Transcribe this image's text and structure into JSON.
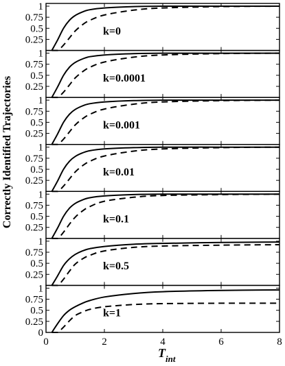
{
  "chart_data": {
    "type": "line",
    "ylabel": "Correctly Identified Trajectories",
    "xlabel_main": "T",
    "xlabel_sub": "int",
    "xlim": [
      0,
      8
    ],
    "ylim": [
      0,
      1
    ],
    "x_ticks": [
      "0",
      "2",
      "4",
      "6",
      "8"
    ],
    "y_ticks": [
      "0.25",
      "0.5",
      "0.75",
      "1"
    ],
    "y_ticks_bottom": [
      "0",
      "0.25",
      "0.5",
      "0.75",
      "1"
    ],
    "series_styles": {
      "solid": "#000000",
      "dashed": "#000000"
    },
    "panels": [
      {
        "label": "k=0",
        "x": [
          0.2,
          0.4,
          0.6,
          0.8,
          1.0,
          1.25,
          1.5,
          2,
          3,
          4,
          6,
          8
        ],
        "solid": [
          0,
          0.24,
          0.5,
          0.68,
          0.79,
          0.87,
          0.92,
          0.96,
          0.99,
          1,
          1,
          1
        ],
        "dashed": [
          0,
          0,
          0.12,
          0.28,
          0.44,
          0.58,
          0.68,
          0.8,
          0.91,
          0.96,
          0.99,
          1
        ]
      },
      {
        "label": "k=0.0001",
        "x": [
          0.2,
          0.4,
          0.6,
          0.8,
          1.0,
          1.25,
          1.5,
          2,
          3,
          4,
          6,
          8
        ],
        "solid": [
          0,
          0.24,
          0.5,
          0.68,
          0.79,
          0.87,
          0.92,
          0.96,
          0.99,
          1,
          1,
          1
        ],
        "dashed": [
          0,
          0,
          0.12,
          0.28,
          0.44,
          0.58,
          0.68,
          0.8,
          0.91,
          0.96,
          0.99,
          1
        ]
      },
      {
        "label": "k=0.001",
        "x": [
          0.2,
          0.4,
          0.6,
          0.8,
          1.0,
          1.25,
          1.5,
          2,
          3,
          4,
          6,
          8
        ],
        "solid": [
          0,
          0.24,
          0.5,
          0.68,
          0.79,
          0.87,
          0.92,
          0.96,
          0.99,
          1,
          1,
          1
        ],
        "dashed": [
          0,
          0,
          0.12,
          0.28,
          0.44,
          0.58,
          0.68,
          0.8,
          0.91,
          0.96,
          0.99,
          1
        ]
      },
      {
        "label": "k=0.01",
        "x": [
          0.2,
          0.4,
          0.6,
          0.8,
          1.0,
          1.25,
          1.5,
          2,
          3,
          4,
          6,
          8
        ],
        "solid": [
          0,
          0.24,
          0.5,
          0.68,
          0.79,
          0.87,
          0.92,
          0.96,
          0.99,
          1,
          1,
          1
        ],
        "dashed": [
          0,
          0,
          0.12,
          0.28,
          0.44,
          0.58,
          0.68,
          0.8,
          0.91,
          0.96,
          0.99,
          1
        ]
      },
      {
        "label": "k=0.1",
        "x": [
          0.2,
          0.4,
          0.6,
          0.8,
          1.0,
          1.25,
          1.5,
          2,
          3,
          4,
          6,
          8
        ],
        "solid": [
          0,
          0.24,
          0.5,
          0.68,
          0.79,
          0.87,
          0.92,
          0.96,
          0.99,
          1,
          1,
          1
        ],
        "dashed": [
          0,
          0,
          0.14,
          0.32,
          0.48,
          0.62,
          0.72,
          0.84,
          0.93,
          0.97,
          0.99,
          1
        ]
      },
      {
        "label": "k=0.5",
        "x": [
          0.2,
          0.4,
          0.6,
          0.8,
          1.0,
          1.25,
          1.5,
          2,
          3,
          4,
          6,
          8
        ],
        "solid": [
          0,
          0.22,
          0.45,
          0.6,
          0.7,
          0.78,
          0.83,
          0.88,
          0.93,
          0.95,
          0.97,
          0.98
        ],
        "dashed": [
          0,
          0,
          0.14,
          0.32,
          0.48,
          0.6,
          0.68,
          0.78,
          0.86,
          0.89,
          0.91,
          0.92
        ]
      },
      {
        "label": "k=1",
        "x": [
          0.2,
          0.4,
          0.6,
          0.8,
          1.0,
          1.25,
          1.5,
          2,
          3,
          4,
          6,
          8
        ],
        "solid": [
          0,
          0.2,
          0.38,
          0.5,
          0.58,
          0.66,
          0.72,
          0.8,
          0.88,
          0.92,
          0.95,
          0.96
        ],
        "dashed": [
          0,
          0,
          0.12,
          0.26,
          0.38,
          0.46,
          0.52,
          0.58,
          0.63,
          0.65,
          0.66,
          0.66
        ]
      }
    ]
  }
}
